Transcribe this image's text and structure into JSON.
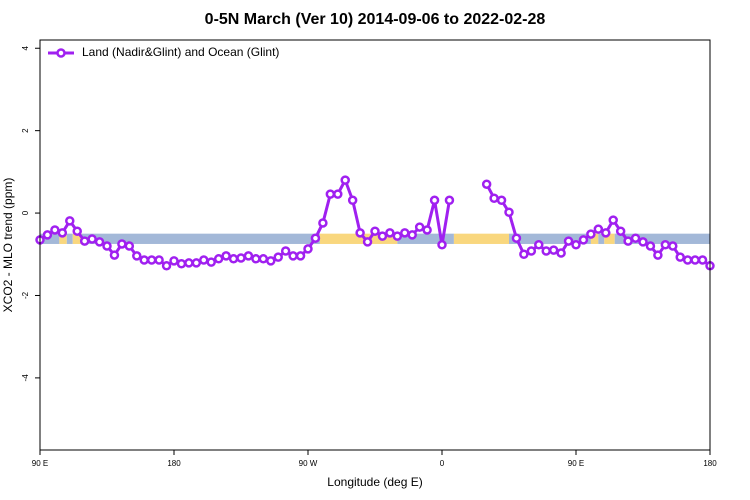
{
  "chart_data": {
    "type": "line",
    "title": "0-5N March (Ver 10)   2014-09-06 to 2022-02-28",
    "xlabel": "Longitude (deg E)",
    "ylabel": "XCO2 - MLO trend (ppm)",
    "x": [
      90,
      95,
      100,
      105,
      110,
      115,
      120,
      125,
      130,
      135,
      140,
      145,
      150,
      155,
      160,
      165,
      170,
      175,
      180,
      185,
      190,
      195,
      200,
      205,
      210,
      215,
      220,
      225,
      230,
      235,
      240,
      245,
      250,
      255,
      260,
      265,
      270,
      275,
      280,
      285,
      290,
      295,
      300,
      305,
      310,
      315,
      320,
      325,
      330,
      335,
      340,
      345,
      350,
      355,
      360,
      365,
      370,
      375,
      380,
      385,
      390,
      395,
      400,
      405,
      410,
      415,
      420,
      425,
      430,
      435,
      440,
      445,
      450,
      455,
      460,
      465,
      470,
      475,
      480,
      485,
      490,
      495,
      500,
      505,
      510,
      515,
      520,
      525,
      530,
      535,
      540
    ],
    "series": [
      {
        "name": "Land (Nadir&Glint) and Ocean (Glint)",
        "color": "#a020f0",
        "values": [
          -0.65,
          -0.53,
          -0.41,
          -0.48,
          -0.19,
          -0.44,
          -0.68,
          -0.63,
          -0.7,
          -0.8,
          -1.02,
          -0.75,
          -0.8,
          -1.04,
          -1.14,
          -1.14,
          -1.14,
          -1.28,
          -1.16,
          -1.23,
          -1.21,
          -1.21,
          -1.14,
          -1.19,
          -1.11,
          -1.04,
          -1.11,
          -1.09,
          -1.04,
          -1.11,
          -1.11,
          -1.16,
          -1.07,
          -0.92,
          -1.04,
          -1.04,
          -0.87,
          -0.61,
          -0.24,
          0.46,
          0.46,
          0.8,
          0.31,
          -0.48,
          -0.7,
          -0.44,
          -0.56,
          -0.48,
          -0.56,
          -0.48,
          -0.53,
          -0.34,
          -0.41,
          0.31,
          -0.77,
          0.31,
          null,
          null,
          null,
          null,
          0.7,
          0.36,
          0.31,
          0.02,
          -0.61,
          -1.0,
          -0.92,
          -0.77,
          -0.92,
          -0.9,
          -0.97,
          -0.68,
          -0.77,
          -0.65,
          -0.51,
          -0.39,
          -0.48,
          -0.17,
          -0.44,
          -0.68,
          -0.61,
          -0.7,
          -0.8,
          -1.02,
          -0.77,
          -0.8,
          -1.07,
          -1.14,
          -1.14,
          -1.14,
          -1.28
        ]
      }
    ],
    "band": {
      "ylim": [
        -0.75,
        -0.5
      ],
      "segments": [
        {
          "from": 90,
          "to": 103,
          "color": "#a3b8d8"
        },
        {
          "from": 103,
          "to": 108,
          "color": "#f9d77e"
        },
        {
          "from": 108,
          "to": 112,
          "color": "#a3b8d8"
        },
        {
          "from": 112,
          "to": 118,
          "color": "#f9d77e"
        },
        {
          "from": 118,
          "to": 278,
          "color": "#a3b8d8"
        },
        {
          "from": 278,
          "to": 330,
          "color": "#f9d77e"
        },
        {
          "from": 330,
          "to": 368,
          "color": "#a3b8d8"
        },
        {
          "from": 368,
          "to": 405,
          "color": "#f9d77e"
        },
        {
          "from": 405,
          "to": 460,
          "color": "#a3b8d8"
        },
        {
          "from": 460,
          "to": 465,
          "color": "#f9d77e"
        },
        {
          "from": 465,
          "to": 469,
          "color": "#a3b8d8"
        },
        {
          "from": 469,
          "to": 476,
          "color": "#f9d77e"
        },
        {
          "from": 476,
          "to": 540,
          "color": "#a3b8d8"
        }
      ]
    },
    "xlim": [
      90,
      540
    ],
    "xticks": [
      {
        "value": 90,
        "label": "90 E"
      },
      180,
      {
        "value": 270,
        "label": "90 W"
      },
      {
        "value": 360,
        "label": "0"
      },
      {
        "value": 450,
        "label": "90 E"
      },
      {
        "value": 540,
        "label": "180"
      }
    ],
    "ylim": [
      -5.75,
      4.2
    ],
    "yticks": [
      -4,
      -2,
      0,
      2,
      4
    ],
    "legend": "top-left"
  }
}
